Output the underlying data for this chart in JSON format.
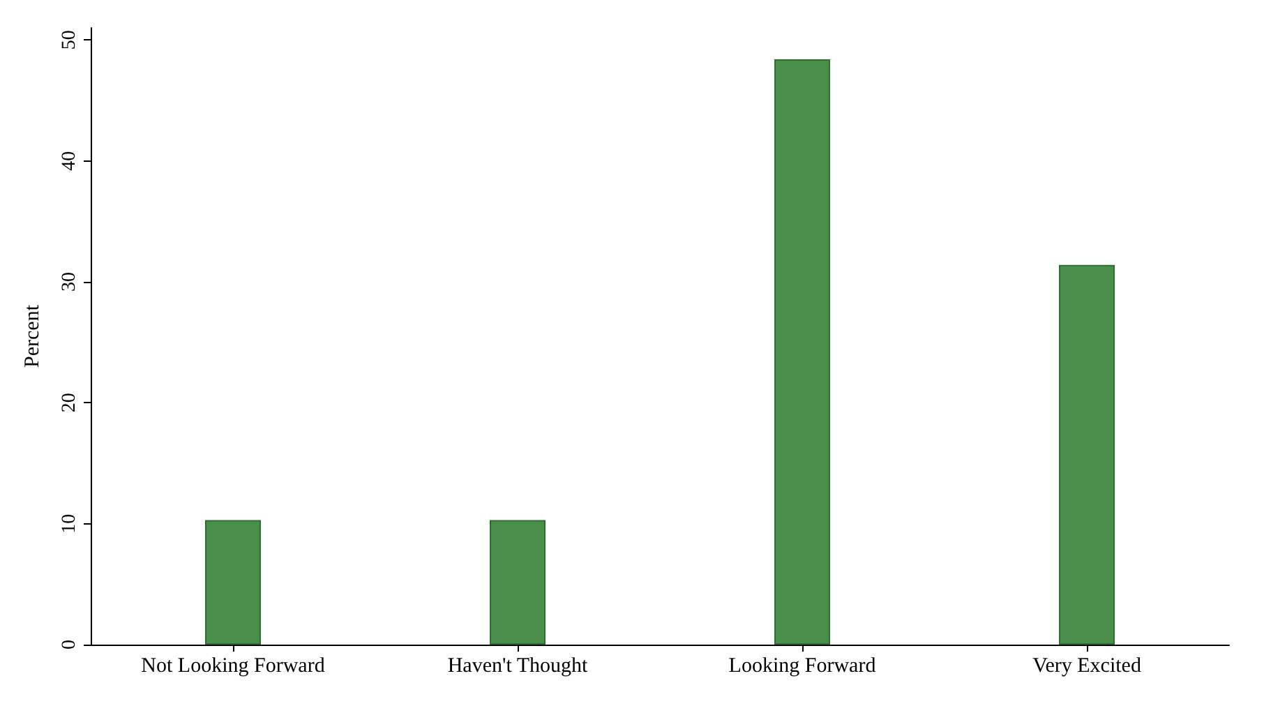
{
  "chart_data": {
    "type": "bar",
    "ylabel": "Percent",
    "categories": [
      "Not Looking Forward",
      "Haven't Thought",
      "Looking Forward",
      "Very Excited"
    ],
    "values": [
      10.3,
      10.3,
      48.4,
      31.4
    ],
    "color": "#4a8e4c",
    "ylim": [
      0,
      51
    ],
    "yticks": [
      0,
      10,
      20,
      30,
      40,
      50
    ],
    "grid": false
  }
}
